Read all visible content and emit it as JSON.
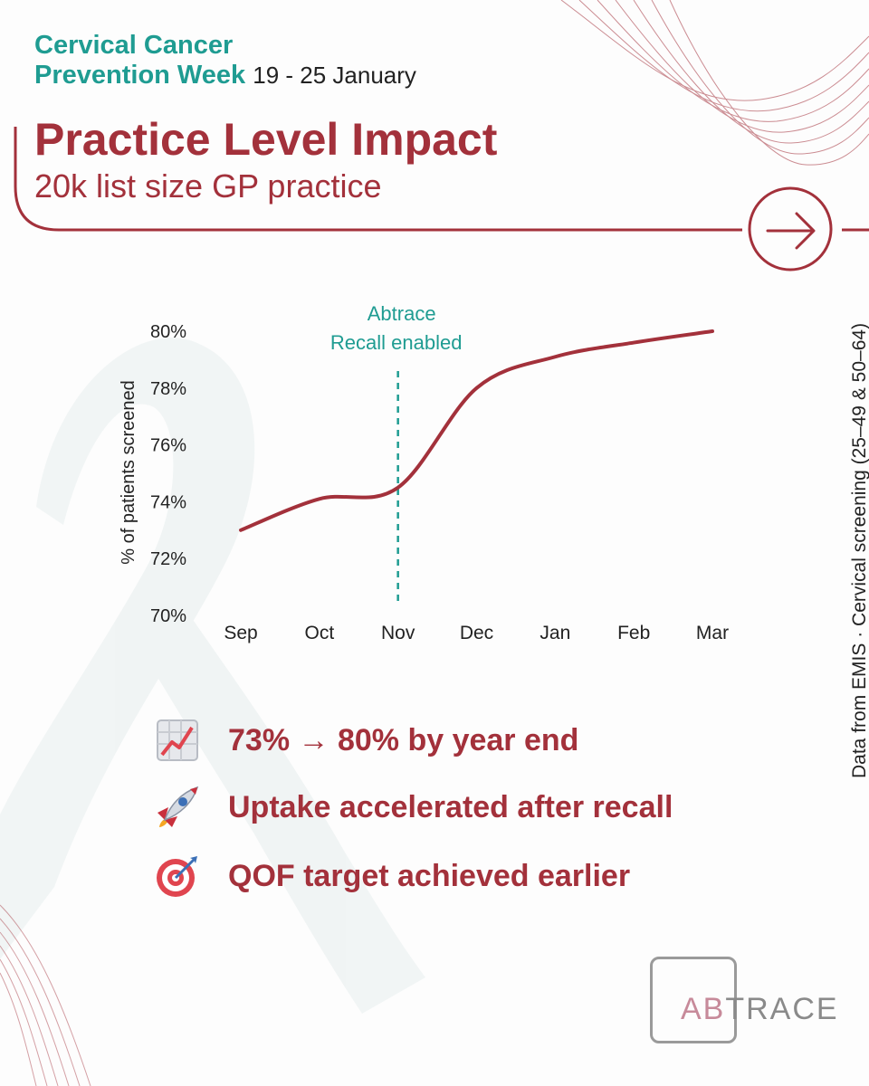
{
  "header": {
    "campaign_line1": "Cervical Cancer",
    "campaign_line2": "Prevention Week",
    "dates": "19 - 25 January",
    "title": "Practice Level Impact",
    "subtitle": "20k list size GP practice"
  },
  "nav": {
    "icon": "arrow-right-icon"
  },
  "chart_data": {
    "type": "line",
    "title": "",
    "x": [
      "Sep",
      "Oct",
      "Nov",
      "Dec",
      "Jan",
      "Feb",
      "Mar"
    ],
    "series": [
      {
        "name": "% of patients screened",
        "values": [
          73.0,
          74.1,
          74.5,
          78.0,
          79.1,
          79.6,
          80.0
        ]
      }
    ],
    "ylabel": "% of patients screened",
    "xlabel": "",
    "ylim": [
      70,
      80
    ],
    "yticks": [
      "70%",
      "72%",
      "74%",
      "76%",
      "78%",
      "80%"
    ],
    "grid": false,
    "annotation": {
      "line1": "Abtrace",
      "line2": "Recall enabled",
      "x_category": "Nov"
    },
    "line_color": "#a3313b",
    "annotation_color": "#1f9c92"
  },
  "source_note": "Data from EMIS · Cervical screening (25–49 & 50–64)",
  "highlights": [
    {
      "icon": "chart-increasing-icon",
      "text": "73% → 80% by year end"
    },
    {
      "icon": "rocket-icon",
      "text": "Uptake accelerated after recall"
    },
    {
      "icon": "target-icon",
      "text": "QOF target achieved earlier"
    }
  ],
  "logo": {
    "text_accent": "AB",
    "text_rest": "TRACE"
  },
  "colors": {
    "brand_red": "#a3313b",
    "brand_teal": "#1f9c92"
  }
}
